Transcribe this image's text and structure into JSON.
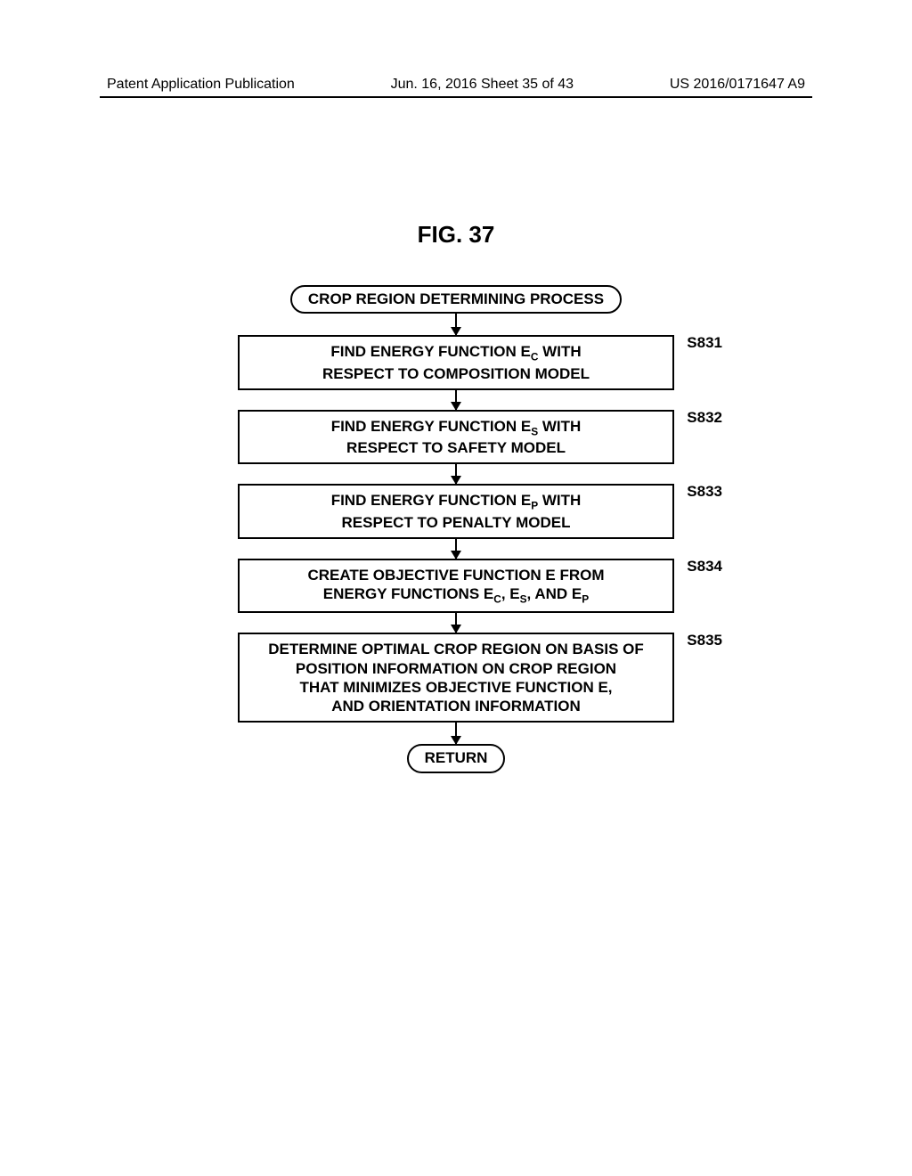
{
  "header": {
    "left": "Patent Application Publication",
    "center": "Jun. 16, 2016  Sheet 35 of 43",
    "right": "US 2016/0171647 A9"
  },
  "figure_title": "FIG. 37",
  "flowchart": {
    "type": "flowchart",
    "background_color": "#ffffff",
    "border_color": "#000000",
    "border_width": 2.5,
    "font_size": 17,
    "font_weight": "bold",
    "start": "CROP REGION DETERMINING PROCESS",
    "steps": [
      {
        "id": "S831",
        "text_html": "FIND ENERGY FUNCTION E<sub>C</sub> WITH<br>RESPECT TO COMPOSITION MODEL"
      },
      {
        "id": "S832",
        "text_html": "FIND ENERGY FUNCTION E<sub>S</sub> WITH<br>RESPECT TO SAFETY MODEL"
      },
      {
        "id": "S833",
        "text_html": "FIND ENERGY FUNCTION E<sub>P</sub> WITH<br>RESPECT TO PENALTY MODEL"
      },
      {
        "id": "S834",
        "text_html": "CREATE OBJECTIVE FUNCTION E FROM<br>ENERGY FUNCTIONS E<sub>C</sub>, E<sub>S</sub>, AND E<sub>P</sub>"
      },
      {
        "id": "S835",
        "text_html": "DETERMINE OPTIMAL CROP REGION ON BASIS OF<br>POSITION INFORMATION ON CROP REGION<br>THAT MINIMIZES OBJECTIVE FUNCTION E,<br>AND ORIENTATION INFORMATION"
      }
    ],
    "end": "RETURN"
  }
}
